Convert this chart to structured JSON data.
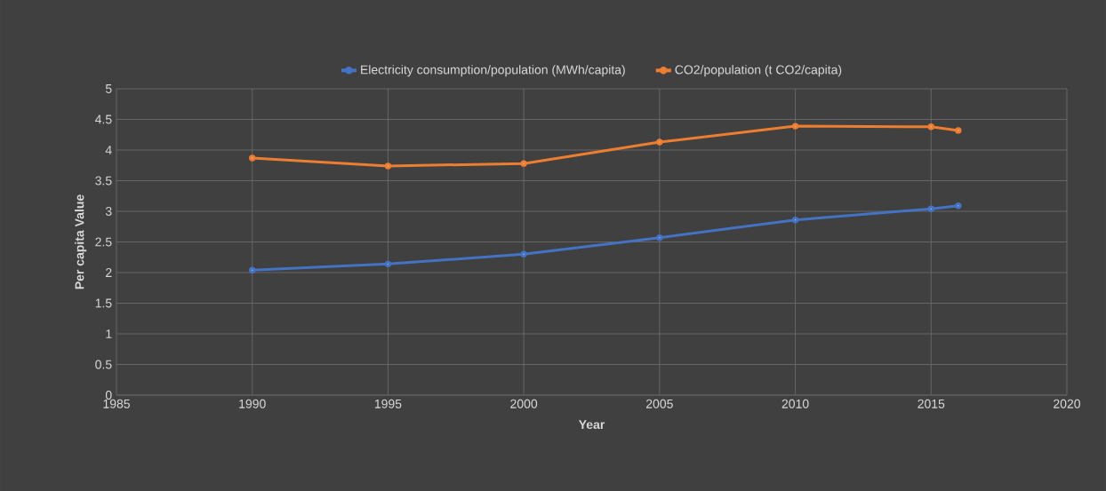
{
  "chart_data": {
    "type": "line",
    "xlabel": "Year",
    "ylabel": "Per capita Value",
    "x": [
      1990,
      1995,
      2000,
      2005,
      2010,
      2015,
      2016
    ],
    "series": [
      {
        "name": "Electricity consumption/population (MWh/capita)",
        "color": "#4472c4",
        "values": [
          2.04,
          2.14,
          2.3,
          2.57,
          2.86,
          3.04,
          3.09
        ]
      },
      {
        "name": "CO2/population (t CO2/capita)",
        "color": "#ed7d31",
        "values": [
          3.87,
          3.74,
          3.78,
          4.13,
          4.39,
          4.38,
          4.32
        ]
      }
    ],
    "xlim": [
      1985,
      2020
    ],
    "xticks": [
      1985,
      1990,
      1995,
      2000,
      2005,
      2010,
      2015,
      2020
    ],
    "ylim": [
      0,
      5
    ],
    "yticks": [
      0,
      0.5,
      1,
      1.5,
      2,
      2.5,
      3,
      3.5,
      4,
      4.5,
      5
    ],
    "grid": true,
    "legend": "top",
    "marker": "circle",
    "line_style": "solid"
  }
}
